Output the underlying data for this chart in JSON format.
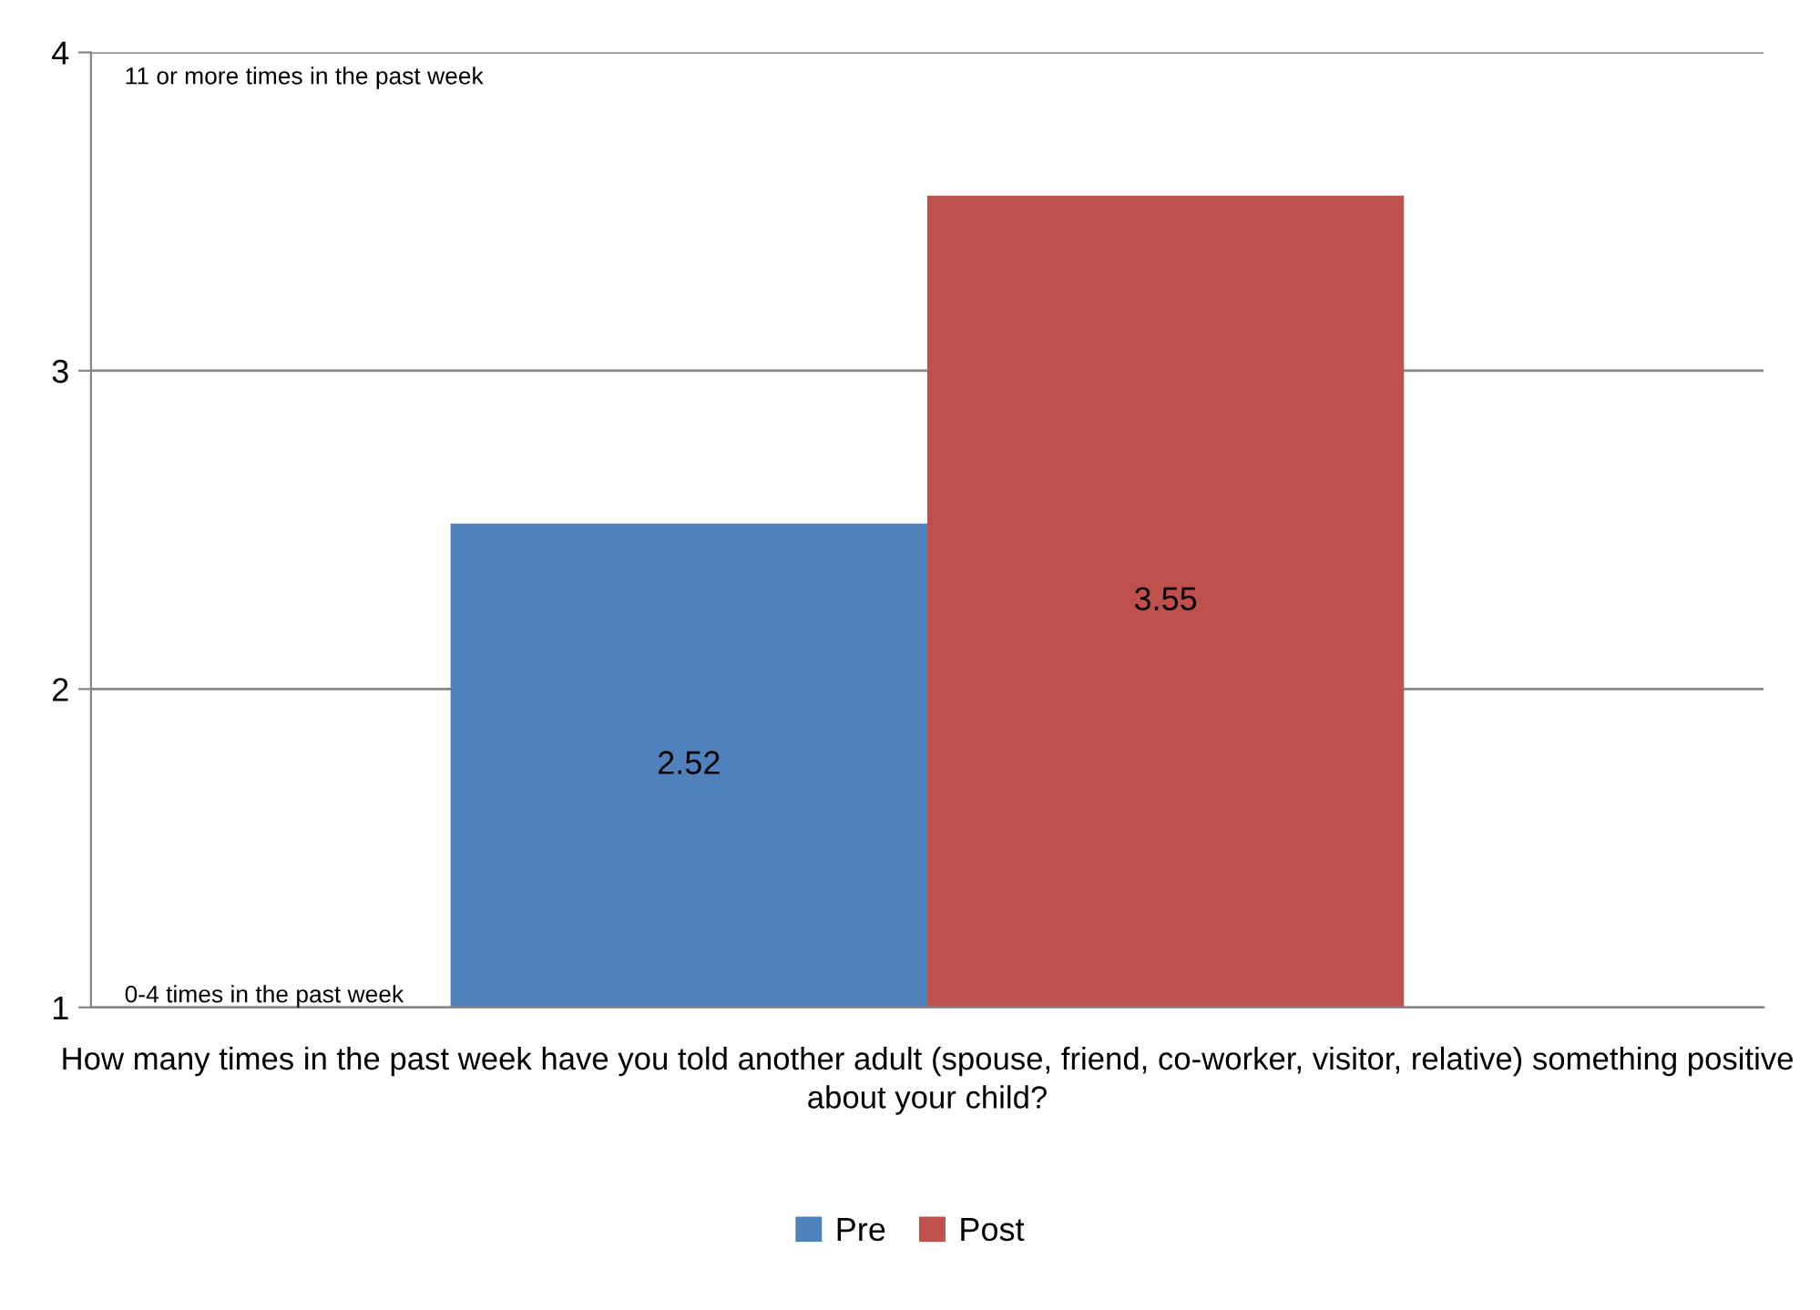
{
  "chart_data": {
    "type": "bar",
    "categories": [
      null
    ],
    "series": [
      {
        "name": "Pre",
        "color": "#4f81bd",
        "values": [
          2.52
        ]
      },
      {
        "name": "Post",
        "color": "#c0504d",
        "values": [
          3.55
        ]
      }
    ],
    "data_labels": true,
    "ylim": [
      1,
      4
    ],
    "yticks": [
      1,
      2,
      3,
      4
    ],
    "grid": "y",
    "xlabel": "How many times in the past week have you told another adult (spouse, friend, co-worker, visitor, relative) something positive about your child?",
    "annotations": [
      "11 or more times in the past week",
      "0-4 times in the past week"
    ],
    "legend": "bottom"
  }
}
